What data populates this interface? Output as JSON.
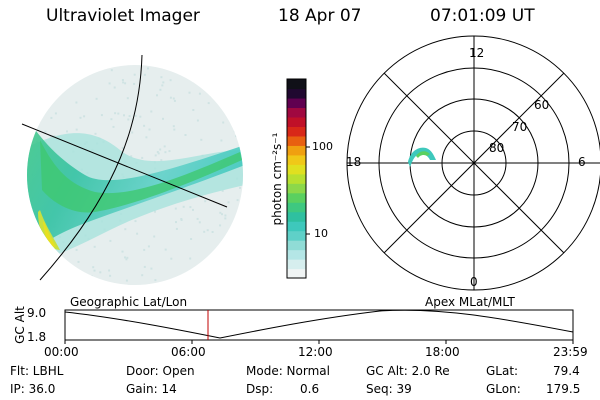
{
  "header": {
    "instrument": "Ultraviolet Imager",
    "date": "18 Apr 07",
    "time": "07:01:09 UT"
  },
  "colorbar": {
    "unit_label": "photon cm⁻²s⁻¹",
    "ticks": [
      "100",
      "10"
    ],
    "colors": [
      "#f0f4f4",
      "#d6eeee",
      "#b4e6e6",
      "#90dcd6",
      "#5fd0c8",
      "#3ec8bc",
      "#2fc0a0",
      "#3ec880",
      "#5ad060",
      "#8cd84a",
      "#b8e030",
      "#e0e020",
      "#f0c818",
      "#f0a010",
      "#e86010",
      "#d82818",
      "#c01028",
      "#a00840",
      "#600050",
      "#200830",
      "#101018"
    ]
  },
  "polar": {
    "labels": {
      "top": "12",
      "left": "18",
      "right": "6",
      "bottom": "0"
    },
    "circle_labels": [
      "60",
      "70",
      "80"
    ]
  },
  "timeline": {
    "left_label": "Geographic Lat/Lon",
    "right_label": "Apex MLat/MLT",
    "yaxis_label": "GC Alt",
    "ymax": "9.0",
    "ymin": "1.8",
    "xticks": [
      "00:00",
      "06:00",
      "12:00",
      "18:00",
      "23:59"
    ],
    "marker_color": "#c00000"
  },
  "footer": {
    "flt": "Flt: LBHL",
    "ip": "IP: 36.0",
    "door": "Door: Open",
    "gain": "Gain: 14",
    "mode": "Mode: Normal",
    "dsp_label": "Dsp:",
    "dsp_value": "0.6",
    "gcalt": "GC Alt: 2.0 Re",
    "seq": "Seq: 39",
    "glat_label": "GLat:",
    "glat_value": "79.4",
    "glon_label": "GLon:",
    "glon_value": "179.5"
  }
}
